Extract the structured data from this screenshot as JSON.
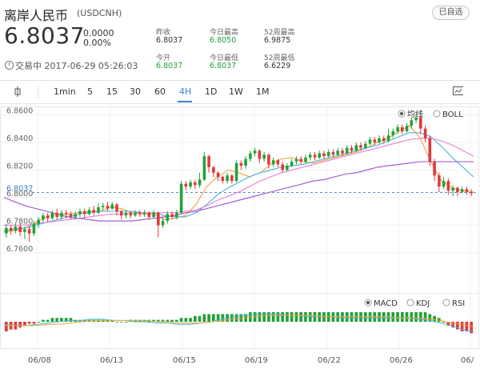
{
  "header": {
    "title": "离岸人民币",
    "code": "(USDCNH)",
    "watch_label": "已自选",
    "price": "6.8037",
    "change": "0.0000",
    "change_pct": "0.00%",
    "status": "交易中 2017-06-29 05:26:03"
  },
  "stats": {
    "prev_close_label": "昨收",
    "prev_close": "6.8037",
    "open_label": "今开",
    "open": "6.8037",
    "high_label": "今日最高",
    "high": "6.8050",
    "low_label": "今日最低",
    "low": "6.8037",
    "w52_high_label": "52周最高",
    "w52_high": "6.9875",
    "w52_low_label": "52周最低",
    "w52_low": "6.6229"
  },
  "toolbar": {
    "items": [
      "1min",
      "5",
      "15",
      "30",
      "60",
      "4H",
      "1D",
      "1W",
      "1M"
    ],
    "active": "4H"
  },
  "chart_data": {
    "type": "candlestick",
    "y_ticks": [
      "6.8600",
      "6.8400",
      "6.8200",
      "6.8037",
      "6.8000",
      "6.7800",
      "6.7600"
    ],
    "ylim": [
      6.75,
      6.866
    ],
    "current_price": "6.8037",
    "x_ticks": [
      "06/08",
      "06/13",
      "06/15",
      "06/19",
      "06/22",
      "06/26",
      "06/"
    ],
    "main_legend": [
      "均线",
      "BOLL"
    ],
    "main_legend_selected": "均线",
    "sub_legend": [
      "MACD",
      "KDJ",
      "RSI"
    ],
    "sub_legend_selected": "MACD",
    "colors": {
      "up": "#23a13a",
      "down": "#e0393b",
      "ma5": "#f3a33a",
      "ma10": "#43b7d8",
      "ma20": "#ee7bd6",
      "ma60": "#9b4fd0"
    },
    "candles": [
      [
        6.774,
        6.778,
        6.771,
        6.781
      ],
      [
        6.778,
        6.776,
        6.773,
        6.78
      ],
      [
        6.776,
        6.779,
        6.774,
        6.781
      ],
      [
        6.779,
        6.775,
        6.772,
        6.781
      ],
      [
        6.775,
        6.777,
        6.77,
        6.779
      ],
      [
        6.777,
        6.774,
        6.768,
        6.779
      ],
      [
        6.774,
        6.781,
        6.772,
        6.783
      ],
      [
        6.781,
        6.784,
        6.778,
        6.786
      ],
      [
        6.784,
        6.787,
        6.782,
        6.789
      ],
      [
        6.787,
        6.785,
        6.782,
        6.789
      ],
      [
        6.785,
        6.789,
        6.784,
        6.791
      ],
      [
        6.789,
        6.786,
        6.784,
        6.792
      ],
      [
        6.786,
        6.789,
        6.784,
        6.791
      ],
      [
        6.789,
        6.788,
        6.785,
        6.791
      ],
      [
        6.788,
        6.786,
        6.784,
        6.79
      ],
      [
        6.786,
        6.788,
        6.784,
        6.79
      ],
      [
        6.788,
        6.79,
        6.786,
        6.792
      ],
      [
        6.79,
        6.788,
        6.785,
        6.792
      ],
      [
        6.788,
        6.791,
        6.787,
        6.793
      ],
      [
        6.791,
        6.789,
        6.787,
        6.794
      ],
      [
        6.789,
        6.793,
        6.788,
        6.796
      ],
      [
        6.793,
        6.794,
        6.791,
        6.796
      ],
      [
        6.794,
        6.792,
        6.79,
        6.797
      ],
      [
        6.792,
        6.795,
        6.791,
        6.797
      ],
      [
        6.795,
        6.79,
        6.787,
        6.796
      ],
      [
        6.79,
        6.787,
        6.784,
        6.791
      ],
      [
        6.787,
        6.789,
        6.785,
        6.791
      ],
      [
        6.789,
        6.787,
        6.785,
        6.79
      ],
      [
        6.787,
        6.789,
        6.786,
        6.791
      ],
      [
        6.789,
        6.788,
        6.786,
        6.791
      ],
      [
        6.788,
        6.789,
        6.786,
        6.791
      ],
      [
        6.789,
        6.786,
        6.784,
        6.79
      ],
      [
        6.786,
        6.789,
        6.785,
        6.791
      ],
      [
        6.789,
        6.78,
        6.771,
        6.79
      ],
      [
        6.78,
        6.783,
        6.778,
        6.786
      ],
      [
        6.783,
        6.788,
        6.781,
        6.79
      ],
      [
        6.788,
        6.786,
        6.784,
        6.79
      ],
      [
        6.786,
        6.789,
        6.784,
        6.791
      ],
      [
        6.789,
        6.81,
        6.788,
        6.812
      ],
      [
        6.81,
        6.808,
        6.805,
        6.812
      ],
      [
        6.808,
        6.811,
        6.806,
        6.813
      ],
      [
        6.811,
        6.809,
        6.806,
        6.813
      ],
      [
        6.809,
        6.813,
        6.807,
        6.818
      ],
      [
        6.813,
        6.83,
        6.812,
        6.833
      ],
      [
        6.83,
        6.822,
        6.818,
        6.831
      ],
      [
        6.822,
        6.818,
        6.815,
        6.823
      ],
      [
        6.818,
        6.815,
        6.812,
        6.819
      ],
      [
        6.815,
        6.812,
        6.81,
        6.816
      ],
      [
        6.812,
        6.816,
        6.81,
        6.818
      ],
      [
        6.816,
        6.812,
        6.81,
        6.817
      ],
      [
        6.812,
        6.825,
        6.811,
        6.827
      ],
      [
        6.825,
        6.823,
        6.82,
        6.827
      ],
      [
        6.823,
        6.828,
        6.821,
        6.83
      ],
      [
        6.828,
        6.832,
        6.826,
        6.834
      ],
      [
        6.832,
        6.834,
        6.83,
        6.836
      ],
      [
        6.834,
        6.828,
        6.825,
        6.835
      ],
      [
        6.828,
        6.831,
        6.826,
        6.833
      ],
      [
        6.831,
        6.824,
        6.821,
        6.832
      ],
      [
        6.824,
        6.827,
        6.822,
        6.829
      ],
      [
        6.827,
        6.824,
        6.822,
        6.828
      ],
      [
        6.824,
        6.82,
        6.818,
        6.826
      ],
      [
        6.82,
        6.823,
        6.819,
        6.825
      ],
      [
        6.823,
        6.826,
        6.822,
        6.828
      ],
      [
        6.826,
        6.828,
        6.824,
        6.83
      ],
      [
        6.828,
        6.826,
        6.824,
        6.83
      ],
      [
        6.826,
        6.829,
        6.825,
        6.831
      ],
      [
        6.829,
        6.831,
        6.827,
        6.833
      ],
      [
        6.831,
        6.829,
        6.827,
        6.833
      ],
      [
        6.829,
        6.832,
        6.828,
        6.834
      ],
      [
        6.832,
        6.83,
        6.828,
        6.834
      ],
      [
        6.83,
        6.833,
        6.829,
        6.835
      ],
      [
        6.833,
        6.831,
        6.829,
        6.835
      ],
      [
        6.831,
        6.834,
        6.83,
        6.836
      ],
      [
        6.834,
        6.832,
        6.83,
        6.836
      ],
      [
        6.832,
        6.836,
        6.831,
        6.838
      ],
      [
        6.836,
        6.834,
        6.832,
        6.838
      ],
      [
        6.834,
        6.838,
        6.833,
        6.84
      ],
      [
        6.838,
        6.836,
        6.834,
        6.84
      ],
      [
        6.836,
        6.839,
        6.835,
        6.841
      ],
      [
        6.839,
        6.842,
        6.838,
        6.844
      ],
      [
        6.842,
        6.84,
        6.838,
        6.844
      ],
      [
        6.84,
        6.843,
        6.839,
        6.845
      ],
      [
        6.843,
        6.841,
        6.839,
        6.845
      ],
      [
        6.841,
        6.845,
        6.84,
        6.85
      ],
      [
        6.845,
        6.848,
        6.843,
        6.85
      ],
      [
        6.848,
        6.851,
        6.846,
        6.853
      ],
      [
        6.851,
        6.848,
        6.846,
        6.853
      ],
      [
        6.848,
        6.852,
        6.847,
        6.854
      ],
      [
        6.852,
        6.856,
        6.85,
        6.858
      ],
      [
        6.856,
        6.858,
        6.854,
        6.86
      ],
      [
        6.858,
        6.85,
        6.846,
        6.859
      ],
      [
        6.85,
        6.843,
        6.84,
        6.852
      ],
      [
        6.843,
        6.826,
        6.823,
        6.845
      ],
      [
        6.826,
        6.816,
        6.812,
        6.828
      ],
      [
        6.816,
        6.808,
        6.804,
        6.818
      ],
      [
        6.808,
        6.812,
        6.806,
        6.815
      ],
      [
        6.812,
        6.805,
        6.802,
        6.814
      ],
      [
        6.805,
        6.807,
        6.801,
        6.809
      ],
      [
        6.807,
        6.804,
        6.801,
        6.808
      ],
      [
        6.804,
        6.806,
        6.803,
        6.808
      ],
      [
        6.806,
        6.804,
        6.802,
        6.808
      ],
      [
        6.804,
        6.803,
        6.801,
        6.806
      ]
    ],
    "ma_lines": {
      "ma5": [
        6.775,
        6.776,
        6.778,
        6.782,
        6.786,
        6.788,
        6.788,
        6.789,
        6.79,
        6.79,
        6.793,
        6.792,
        6.789,
        6.788,
        6.788,
        6.784,
        6.785,
        6.787,
        6.795,
        6.808,
        6.815,
        6.82,
        6.818,
        6.815,
        6.818,
        6.824,
        6.828,
        6.829,
        6.826,
        6.825,
        6.827,
        6.829,
        6.831,
        6.833,
        6.836,
        6.84,
        6.843,
        6.848,
        6.852,
        6.843,
        6.826,
        6.812,
        6.807,
        6.805,
        6.804
      ],
      "ma10": [
        6.776,
        6.777,
        6.778,
        6.78,
        6.782,
        6.784,
        6.786,
        6.788,
        6.789,
        6.79,
        6.79,
        6.79,
        6.79,
        6.789,
        6.789,
        6.787,
        6.786,
        6.786,
        6.789,
        6.795,
        6.802,
        6.807,
        6.811,
        6.815,
        6.818,
        6.82,
        6.822,
        6.823,
        6.824,
        6.826,
        6.828,
        6.83,
        6.832,
        6.834,
        6.836,
        6.838,
        6.841,
        6.844,
        6.847,
        6.847,
        6.844,
        6.837,
        6.829,
        6.822,
        6.815
      ],
      "ma20": [
        6.78,
        6.78,
        6.78,
        6.781,
        6.782,
        6.783,
        6.784,
        6.785,
        6.786,
        6.787,
        6.788,
        6.788,
        6.789,
        6.789,
        6.789,
        6.789,
        6.789,
        6.79,
        6.791,
        6.794,
        6.798,
        6.801,
        6.804,
        6.808,
        6.812,
        6.815,
        6.818,
        6.82,
        6.822,
        6.824,
        6.826,
        6.828,
        6.83,
        6.832,
        6.834,
        6.836,
        6.838,
        6.84,
        6.842,
        6.843,
        6.843,
        6.841,
        6.838,
        6.834,
        6.83
      ],
      "ma60": [
        6.8,
        6.797,
        6.794,
        6.792,
        6.79,
        6.788,
        6.786,
        6.785,
        6.784,
        6.783,
        6.783,
        6.783,
        6.783,
        6.784,
        6.785,
        6.786,
        6.787,
        6.789,
        6.79,
        6.792,
        6.794,
        6.796,
        6.798,
        6.8,
        6.802,
        6.804,
        6.806,
        6.808,
        6.81,
        6.812,
        6.813,
        6.815,
        6.817,
        6.818,
        6.82,
        6.822,
        6.823,
        6.824,
        6.825,
        6.826,
        6.826,
        6.826,
        6.826,
        6.826,
        6.826
      ]
    },
    "macd_hist": [
      -5,
      -4,
      -4,
      -3,
      -2,
      -1,
      -1,
      0,
      1,
      1,
      2,
      2,
      2,
      2,
      2,
      1,
      1,
      1,
      1,
      1,
      1,
      1,
      1,
      1,
      0,
      0,
      0,
      1,
      1,
      1,
      1,
      1,
      1,
      1,
      1,
      1,
      1,
      1,
      2,
      2,
      2,
      3,
      3,
      4,
      4,
      4,
      4,
      4,
      4,
      4,
      4,
      4,
      4,
      5,
      5,
      5,
      5,
      5,
      5,
      5,
      5,
      5,
      5,
      5,
      5,
      5,
      5,
      5,
      5,
      5,
      5,
      5,
      5,
      5,
      5,
      5,
      5,
      5,
      5,
      5,
      5,
      5,
      5,
      5,
      5,
      5,
      5,
      5,
      5,
      5,
      5,
      5,
      4,
      3,
      2,
      0,
      -2,
      -3,
      -4,
      -5,
      -5,
      -6
    ],
    "macd_dif": [
      -2,
      -3,
      -3,
      -2,
      -1,
      0,
      1,
      1,
      2,
      2,
      1,
      1,
      0,
      0,
      -1,
      -1,
      -2,
      -2,
      -1,
      0,
      2,
      4,
      5,
      6,
      6,
      6,
      5,
      5,
      4,
      4,
      4,
      3,
      3,
      3,
      3,
      3,
      3,
      3,
      2,
      1,
      -1,
      -3,
      -6,
      -8
    ],
    "macd_dea": [
      -3,
      -3,
      -3,
      -3,
      -2,
      -2,
      -1,
      0,
      1,
      1,
      1,
      1,
      1,
      1,
      0,
      0,
      -1,
      -1,
      -1,
      0,
      1,
      2,
      3,
      4,
      5,
      5,
      5,
      5,
      5,
      4,
      4,
      4,
      4,
      4,
      4,
      4,
      3,
      3,
      3,
      2,
      1,
      -1,
      -2,
      -4
    ]
  }
}
